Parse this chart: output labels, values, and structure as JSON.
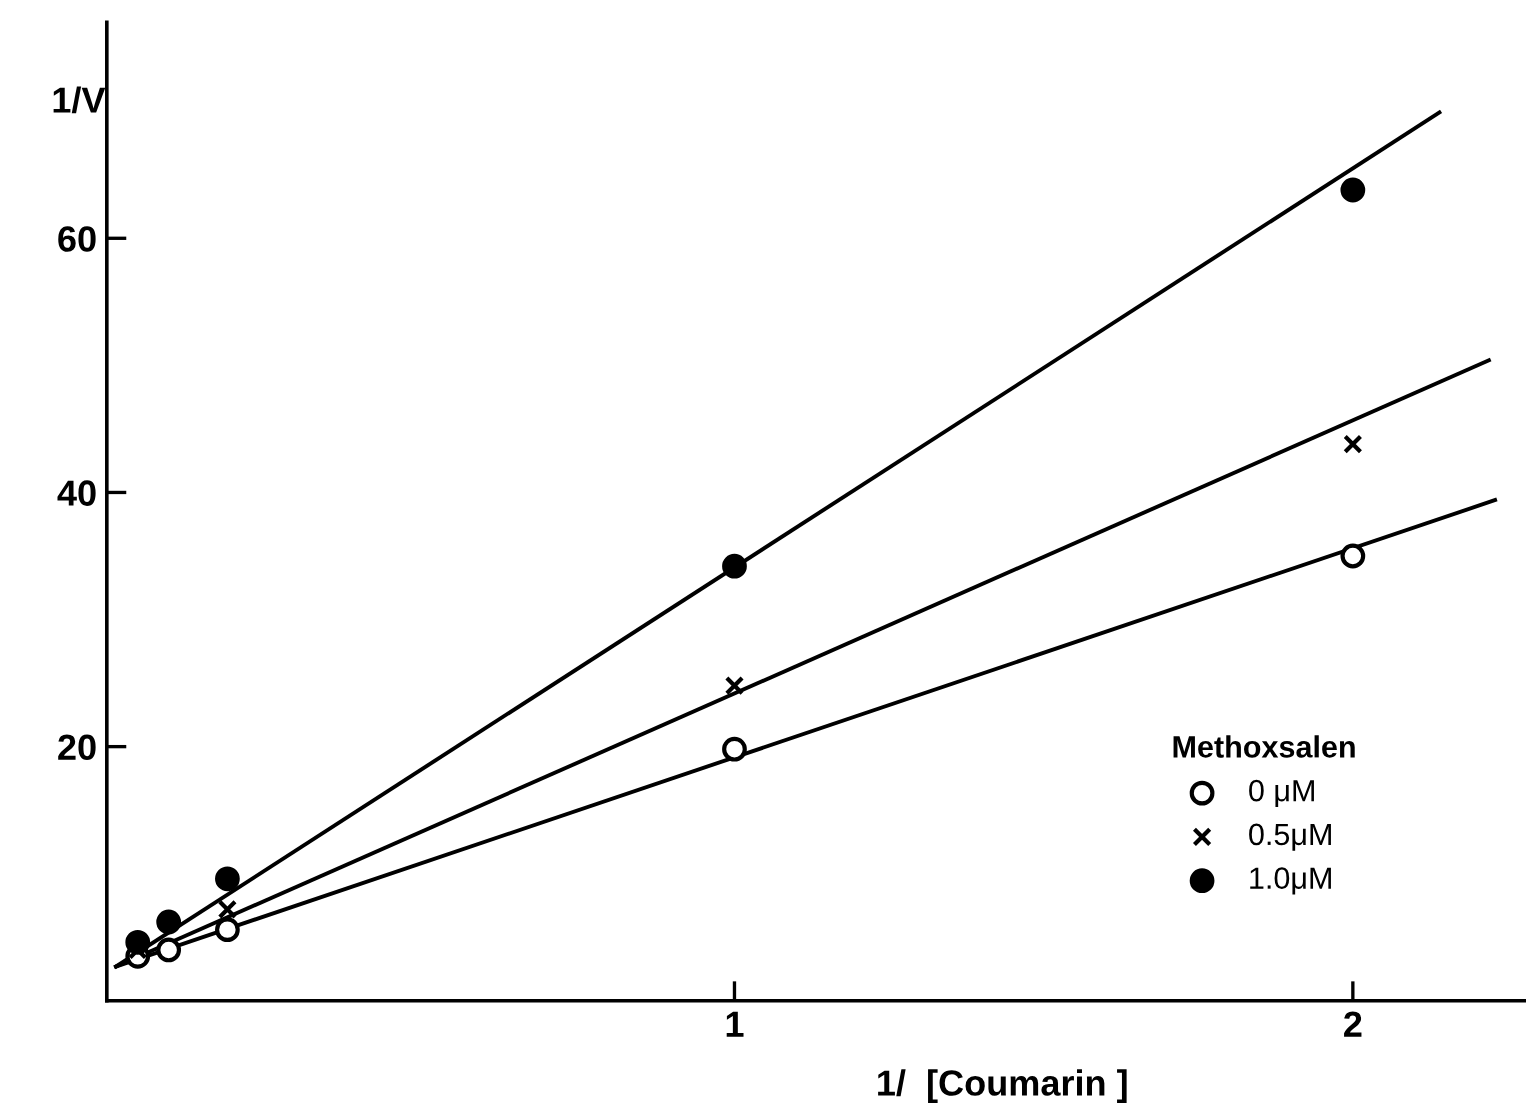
{
  "chart_data": {
    "type": "scatter",
    "xlabel": "1/  [Coumarin ]",
    "ylabel": "1/V",
    "legend_title": "Methoxsalen",
    "legend": "bottom right",
    "xlim": [
      -0.015,
      2.28
    ],
    "ylim": [
      0,
      77
    ],
    "xticks": [
      1,
      2
    ],
    "yticks": [
      20,
      40,
      60
    ],
    "grid": false,
    "series": [
      {
        "name": "0 μM",
        "marker": "circle",
        "color": "#000000",
        "x": [
          0.035,
          0.085,
          0.18,
          1,
          2
        ],
        "values": [
          3.5,
          4.0,
          5.6,
          19.8,
          35.0
        ]
      },
      {
        "name": "0.5μM",
        "marker": "cross",
        "color": "#000000",
        "x": [
          0.035,
          0.085,
          0.18,
          1,
          2
        ],
        "values": [
          4.0,
          null,
          7.2,
          24.8,
          43.8
        ]
      },
      {
        "name": "1.0μM",
        "marker": "circle",
        "color": "#000000",
        "x": [
          0.035,
          0.085,
          0.18,
          1,
          2
        ],
        "values": [
          4.6,
          6.2,
          9.6,
          34.2,
          63.8
        ]
      },
      {
        "type": "line",
        "color": "#000000",
        "line_style": "solid",
        "x": [
          0,
          2.23
        ],
        "values": [
          2.7,
          39.4
        ]
      },
      {
        "type": "line",
        "color": "#000000",
        "line_style": "solid",
        "x": [
          0,
          2.22
        ],
        "values": [
          2.7,
          50.4
        ]
      },
      {
        "type": "line",
        "color": "#000000",
        "line_style": "solid",
        "x": [
          0,
          2.14
        ],
        "values": [
          2.7,
          69.9
        ]
      }
    ]
  }
}
